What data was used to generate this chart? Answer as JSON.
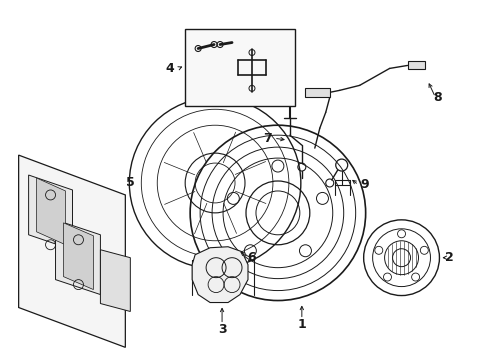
{
  "bg_color": "#ffffff",
  "lc": "#1a1a1a",
  "figsize": [
    4.89,
    3.6
  ],
  "dpi": 100,
  "label_fs": 9
}
